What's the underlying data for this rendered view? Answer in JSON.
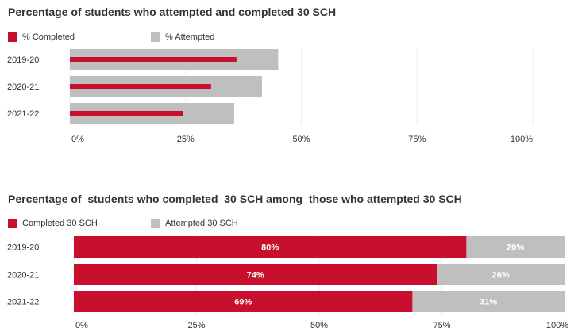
{
  "chart_data": [
    {
      "type": "bar",
      "orientation": "horizontal",
      "title": "Percentage of students who attempted and completed 30 SCH",
      "categories": [
        "2019-20",
        "2020-21",
        "2021-22"
      ],
      "series": [
        {
          "name": "% Completed",
          "color": "#c8102e",
          "values": [
            36,
            30.5,
            24.5
          ]
        },
        {
          "name": "% Attempted",
          "color": "#bfbfbf",
          "values": [
            45,
            41.5,
            35.5
          ]
        }
      ],
      "xlim": [
        0,
        100
      ],
      "xticks": [
        "0%",
        "25%",
        "50%",
        "75%",
        "100%"
      ],
      "tick_values": [
        0,
        25,
        50,
        75,
        100
      ],
      "grid": true,
      "legend": "top-left"
    },
    {
      "type": "bar",
      "orientation": "horizontal",
      "stacked": true,
      "title": "Percentage of  students who completed  30 SCH among  those who attempted 30 SCH",
      "categories": [
        "2019-20",
        "2020-21",
        "2021-22"
      ],
      "series": [
        {
          "name": "Completed 30 SCH",
          "color": "#c8102e",
          "values": [
            80,
            74,
            69
          ],
          "labels": [
            "80%",
            "74%",
            "69%"
          ]
        },
        {
          "name": "Attempted 30 SCH",
          "color": "#bfbfbf",
          "values": [
            20,
            26,
            31
          ],
          "labels": [
            "20%",
            "26%",
            "31%"
          ]
        }
      ],
      "xlim": [
        0,
        100
      ],
      "xticks": [
        "0%",
        "25%",
        "50%",
        "75%",
        "100%"
      ],
      "tick_values": [
        0,
        25,
        50,
        75,
        100
      ],
      "grid": true,
      "legend": "top-left"
    }
  ]
}
